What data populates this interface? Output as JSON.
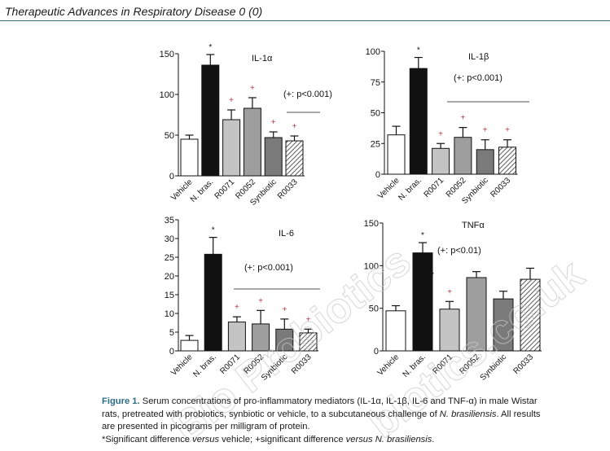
{
  "header": {
    "journal_title": "Therapeutic Advances in Respiratory Disease",
    "volume_issue": "0 (0)"
  },
  "watermark": {
    "lines": [
      "Bio Probiotics",
      "biotics.co.uk"
    ]
  },
  "chart_data": [
    {
      "type": "bar",
      "panel": "top-left",
      "title": "IL-1α",
      "categories": [
        "Vehicle",
        "N. bras.",
        "R0071",
        "R0052",
        "Synbiotic",
        "R0033"
      ],
      "values": [
        45,
        136,
        69,
        83,
        47,
        43
      ],
      "errors": [
        5,
        13,
        12,
        13,
        7,
        6
      ],
      "ylim": [
        0,
        150
      ],
      "yticks": [
        0,
        50,
        100,
        150
      ],
      "star": [
        false,
        true,
        false,
        false,
        false,
        false
      ],
      "plus": [
        false,
        false,
        true,
        true,
        true,
        true
      ],
      "annotation": "(+: p<0.001)",
      "bar_styles": [
        "white",
        "black",
        "light",
        "mid",
        "dark",
        "hatch"
      ]
    },
    {
      "type": "bar",
      "panel": "top-right",
      "title": "IL-1β",
      "categories": [
        "Vehicle",
        "N. bras.",
        "R0071",
        "R0052",
        "Synbiotic",
        "R0033"
      ],
      "values": [
        32,
        86,
        21,
        30,
        20,
        22
      ],
      "errors": [
        7,
        9,
        4,
        8,
        8,
        6
      ],
      "ylim": [
        0,
        100
      ],
      "yticks": [
        0,
        25,
        50,
        75,
        100
      ],
      "star": [
        false,
        true,
        false,
        false,
        false,
        false
      ],
      "plus": [
        false,
        false,
        true,
        true,
        true,
        true
      ],
      "annotation": "(+: p<0.001)",
      "bar_styles": [
        "white",
        "black",
        "light",
        "mid",
        "dark",
        "hatch"
      ]
    },
    {
      "type": "bar",
      "panel": "bottom-left",
      "title": "IL-6",
      "categories": [
        "Vehicle",
        "N. bras.",
        "R0071",
        "R0052",
        "Synbiotic",
        "R0033"
      ],
      "values": [
        2.8,
        25.8,
        7.7,
        7.2,
        5.8,
        4.8
      ],
      "errors": [
        1.3,
        4.5,
        1.4,
        3.6,
        2.7,
        1.0
      ],
      "ylim": [
        0,
        35
      ],
      "yticks": [
        0,
        5,
        10,
        15,
        20,
        25,
        30,
        35
      ],
      "star": [
        false,
        true,
        false,
        false,
        false,
        false
      ],
      "plus": [
        false,
        false,
        true,
        true,
        true,
        true
      ],
      "annotation": "(+: p<0.001)",
      "bar_styles": [
        "white",
        "black",
        "light",
        "mid",
        "dark",
        "hatch"
      ]
    },
    {
      "type": "bar",
      "panel": "bottom-right",
      "title": "TNFα",
      "categories": [
        "Vehicle",
        "N. bras.",
        "R0071",
        "R0052",
        "Synbiotic",
        "R0033"
      ],
      "values": [
        47,
        115,
        49,
        86,
        61,
        84
      ],
      "errors": [
        6,
        12,
        9,
        7,
        9,
        13
      ],
      "ylim": [
        0,
        150
      ],
      "yticks": [
        0,
        50,
        100,
        150
      ],
      "star": [
        false,
        true,
        false,
        false,
        false,
        false
      ],
      "plus": [
        false,
        false,
        true,
        false,
        false,
        false
      ],
      "annotation": "(+: p<0.01)",
      "bar_styles": [
        "white",
        "black",
        "light",
        "mid",
        "dark",
        "hatch"
      ]
    }
  ],
  "caption": {
    "label": "Figure 1.",
    "line1": "Serum concentrations of pro-inflammatory mediators (IL-1α, IL-1β, IL-6 and TNF-α) in male Wistar",
    "line2_pre": "rats, pretreated with probiotics, synbiotic or vehicle, to a subcutaneous challenge of ",
    "line2_species": "N. brasiliensis",
    "line2_post": ". All results",
    "line3": "are presented in picograms per milligram of protein.",
    "line4_a": "*Significant difference ",
    "line4_versus1": "versus",
    "line4_b": " vehicle; +significant difference ",
    "line4_versus2": "versus N. brasiliensis",
    "line4_c": "."
  },
  "colors": {
    "header_rule": "#2f6f7a",
    "caption_label": "#2b6e86",
    "plus_sign": "#b03a48",
    "bar_white": "#ffffff",
    "bar_black": "#111111",
    "bar_light": "#c4c4c4",
    "bar_mid": "#9e9e9e",
    "bar_dark": "#7a7a7a",
    "axis": "#111111",
    "bracket_line": "#8c8c8c",
    "watermark": "#c9c9c9"
  }
}
